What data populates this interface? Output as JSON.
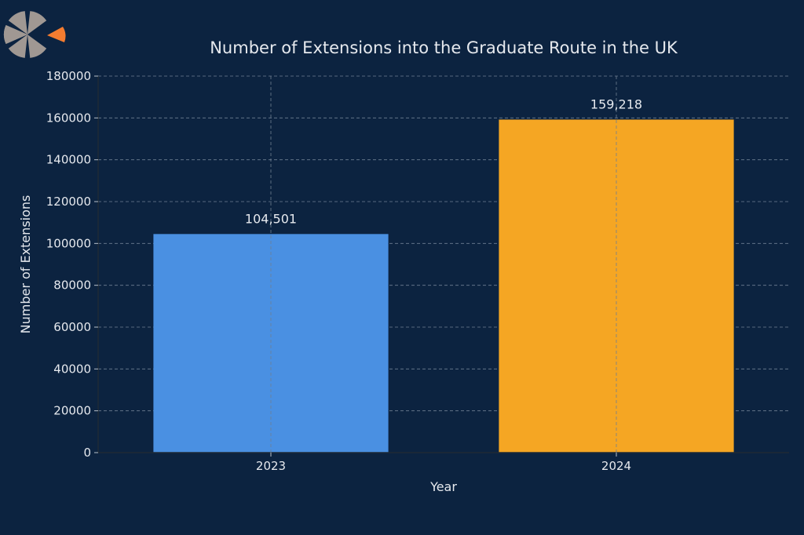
{
  "logo": {
    "icon": "k-pinwheel-logo",
    "petal_color": "#a09893",
    "accent_color": "#f47c30"
  },
  "colors": {
    "background": "#0c2340",
    "text": "#e6e9ee"
  },
  "chart_data": {
    "type": "bar",
    "title": "Number of Extensions into the Graduate Route in the UK",
    "xlabel": "Year",
    "ylabel": "Number of Extensions",
    "categories": [
      "2023",
      "2024"
    ],
    "values": [
      104501,
      159218
    ],
    "data_labels": [
      "104,501",
      "159,218"
    ],
    "bar_colors": [
      "#4a90e2",
      "#f5a623"
    ],
    "ylim": [
      0,
      180000
    ],
    "yticks": [
      0,
      20000,
      40000,
      60000,
      80000,
      100000,
      120000,
      140000,
      160000,
      180000
    ],
    "grid": true,
    "legend": "none"
  }
}
